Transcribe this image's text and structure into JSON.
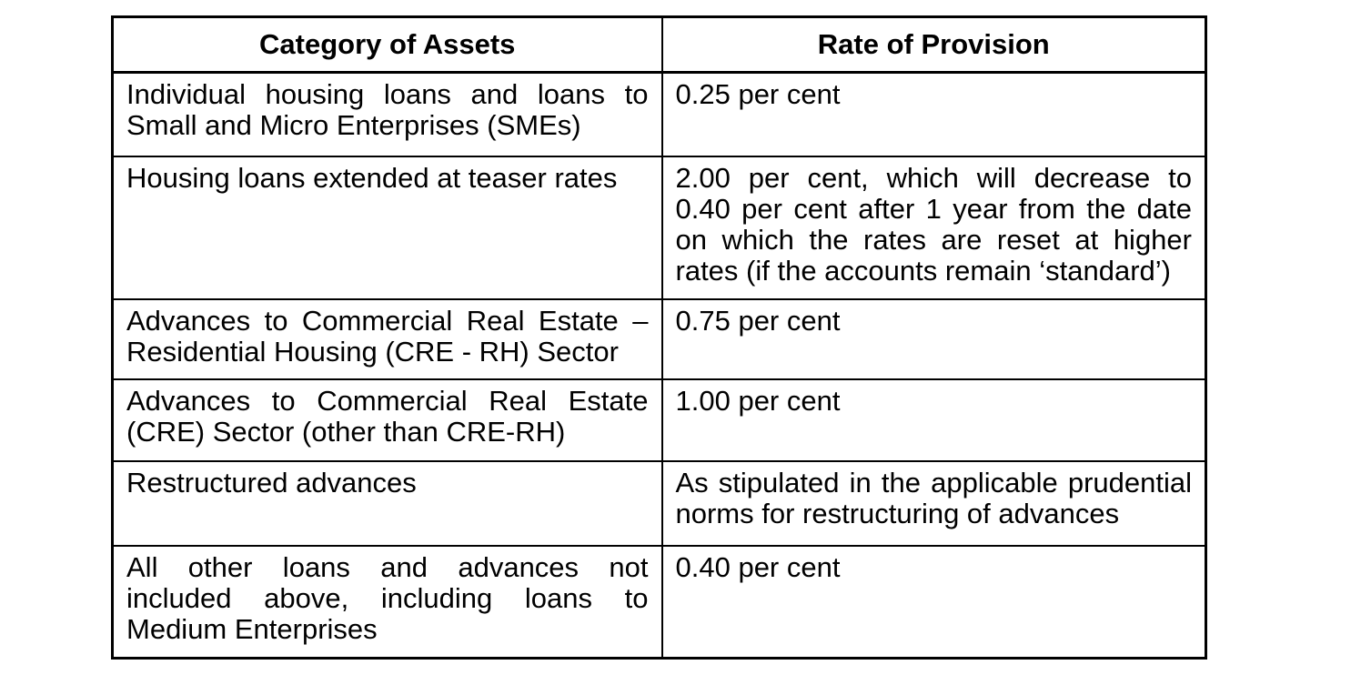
{
  "document": {
    "background": "#ffffff",
    "text_color": "#000000",
    "border_color": "#000000"
  },
  "table": {
    "columns": [
      {
        "label": "Category of Assets"
      },
      {
        "label": "Rate of Provision"
      }
    ],
    "rows": [
      {
        "category": "Individual housing loans and loans to Small and Micro Enterprises (SMEs)",
        "rate": "0.25 per cent"
      },
      {
        "category": "Housing loans extended at teaser rates",
        "rate": "2.00 per cent, which will decrease to 0.40 per cent after 1 year from the date on which the rates are reset at higher rates (if the accounts remain ‘standard’)"
      },
      {
        "category": "Advances to Commercial Real Estate – Residential Housing (CRE - RH) Sector",
        "rate": "0.75 per cent"
      },
      {
        "category": "Advances to Commercial Real Estate (CRE) Sector (other than CRE-RH)",
        "rate": "1.00 per cent"
      },
      {
        "category": "Restructured advances",
        "rate": "As stipulated in the applicable prudential norms for restructuring of advances"
      },
      {
        "category": "All other loans and advances not included above, including loans to Medium Enterprises",
        "rate": "0.40 per cent"
      }
    ]
  }
}
